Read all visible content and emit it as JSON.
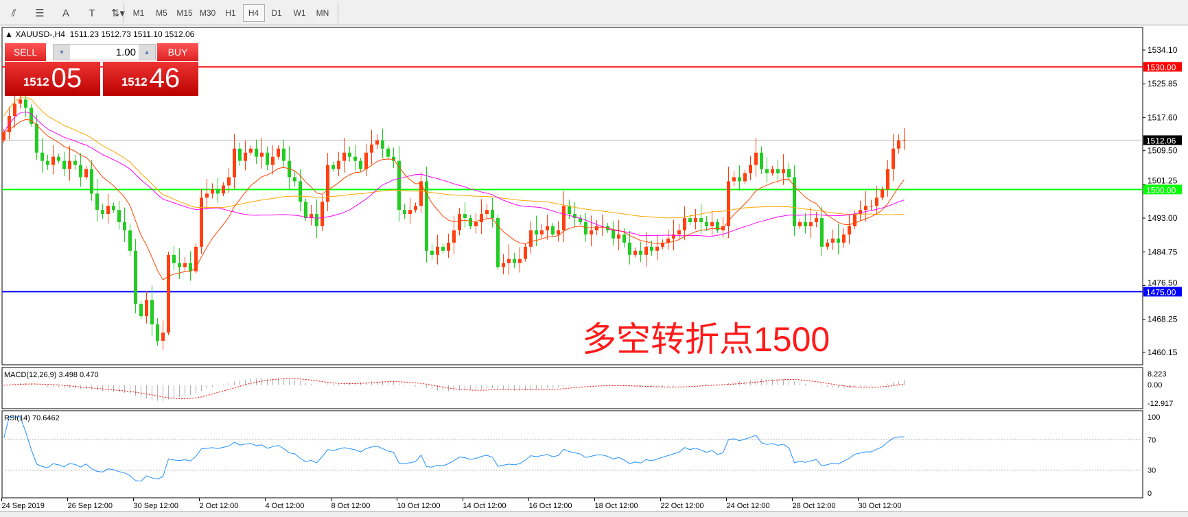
{
  "toolbar": {
    "tools": [
      {
        "name": "equidistant-channel-icon",
        "glyph": "⫽"
      },
      {
        "name": "fibonacci-icon",
        "glyph": "☰"
      },
      {
        "name": "text-icon",
        "glyph": "A"
      },
      {
        "name": "text-label-icon",
        "glyph": "T"
      },
      {
        "name": "arrows-icon",
        "glyph": "⇅▾"
      }
    ],
    "timeframes": [
      "M1",
      "M5",
      "M15",
      "M30",
      "H1",
      "H4",
      "D1",
      "W1",
      "MN"
    ],
    "active_timeframe": "H4"
  },
  "chart": {
    "title": "XAUUSD-,H4",
    "ohlc_text": "1511.23 1512.73 1511.10 1512.06"
  },
  "trade_panel": {
    "sell_label": "SELL",
    "buy_label": "BUY",
    "lot": "1.00",
    "sell_small": "1512",
    "sell_big": "05",
    "buy_small": "1512",
    "buy_big": "46"
  },
  "annotation": "多空转折点1500",
  "chart_data": {
    "type": "candlestick",
    "symbol": "XAUUSD-",
    "timeframe": "H4",
    "ylim": [
      1456,
      1540
    ],
    "y_ticks": [
      "1534.10",
      "1525.85",
      "1517.60",
      "1509.50",
      "1501.25",
      "1493.00",
      "1484.75",
      "1476.50",
      "1468.25",
      "1460.15"
    ],
    "x_ticks": [
      "24 Sep 2019",
      "26 Sep 12:00",
      "30 Sep 12:00",
      "2 Oct 12:00",
      "4 Oct 12:00",
      "8 Oct 12:00",
      "10 Oct 12:00",
      "14 Oct 12:00",
      "16 Oct 12:00",
      "18 Oct 12:00",
      "22 Oct 12:00",
      "24 Oct 12:00",
      "28 Oct 12:00",
      "30 Oct 12:00"
    ],
    "close": [
      1514,
      1518,
      1521,
      1522,
      1520,
      1516,
      1509,
      1507,
      1506,
      1508,
      1507,
      1505,
      1507,
      1506,
      1503,
      1505,
      1499,
      1495,
      1494,
      1496,
      1495,
      1492,
      1490,
      1485,
      1472,
      1469,
      1473,
      1467,
      1463,
      1465,
      1484,
      1482,
      1481,
      1482,
      1480,
      1486,
      1498,
      1499,
      1500,
      1499,
      1501,
      1503,
      1510,
      1507,
      1509,
      1510,
      1508,
      1509,
      1506,
      1508,
      1510,
      1507,
      1503,
      1502,
      1497,
      1493,
      1494,
      1491,
      1497,
      1506,
      1505,
      1507,
      1509,
      1508,
      1507,
      1505,
      1509,
      1511,
      1512,
      1510,
      1508,
      1507,
      1495,
      1494,
      1495,
      1496,
      1502,
      1485,
      1484,
      1486,
      1485,
      1487,
      1490,
      1494,
      1493,
      1491,
      1492,
      1494,
      1495,
      1493,
      1481,
      1482,
      1483,
      1482,
      1483,
      1486,
      1490,
      1489,
      1490,
      1491,
      1489,
      1490,
      1496,
      1494,
      1493,
      1492,
      1489,
      1490,
      1491,
      1491,
      1490,
      1488,
      1489,
      1487,
      1484,
      1485,
      1484,
      1486,
      1485,
      1486,
      1487,
      1488,
      1489,
      1490,
      1493,
      1492,
      1493,
      1492,
      1491,
      1492,
      1490,
      1491,
      1502,
      1503,
      1502,
      1504,
      1506,
      1509,
      1505,
      1504,
      1505,
      1504,
      1505,
      1503,
      1491,
      1492,
      1491,
      1492,
      1493,
      1486,
      1487,
      1488,
      1487,
      1489,
      1491,
      1494,
      1495,
      1496,
      1496,
      1498,
      1500,
      1505,
      1510,
      1512,
      1512.06
    ],
    "hlines": [
      {
        "price": "1530.00",
        "color": "#ff0000"
      },
      {
        "price": "1500.00",
        "color": "#00ff00"
      },
      {
        "price": "1475.00",
        "color": "#0000ff"
      },
      {
        "price": "1512.06",
        "color": "#000000",
        "kind": "bid"
      }
    ],
    "colors": {
      "up": "#ff4010",
      "down": "#22cc22",
      "ma_fast": "#ff4500",
      "ma_mid": "#ff00ff",
      "ma_slow": "#ffa500",
      "rsi": "#1e90ff",
      "macd_signal": "#ff0000"
    },
    "macd": {
      "label": "MACD(12,26,9) 3.498 0.470",
      "ticks": [
        "8.223",
        "0.00",
        "-12.917"
      ]
    },
    "rsi": {
      "label": "RSI(14) 70.6462",
      "ticks": [
        "100",
        "70",
        "30",
        "0"
      ],
      "levels": [
        70,
        30
      ]
    }
  }
}
